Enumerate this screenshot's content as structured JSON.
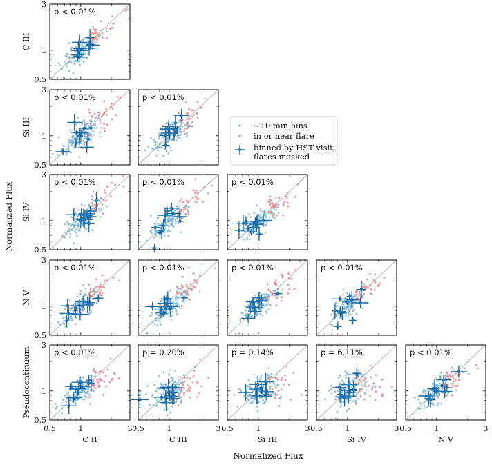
{
  "chart_data": {
    "type": "scatter",
    "layout": "corner-plot",
    "xlabel": "Normalized Flux",
    "ylabel": "Normalized Flux",
    "axis_scale": "log",
    "axis_range": [
      0.5,
      3
    ],
    "tick_labels": [
      "0.5",
      "1",
      "3"
    ],
    "reference_line": "y = x",
    "colors": {
      "bins": "#7fb4d9",
      "flare": "#f08080",
      "visit": "#1f6faa",
      "line": "#b0b0b0"
    },
    "legend": {
      "placement": "upper-right",
      "entries": [
        "~10 min bins",
        "in or near flare",
        "binned by HST visit,",
        "flares masked"
      ]
    },
    "row_labels": [
      "C III",
      "Si III",
      "Si IV",
      "N V",
      "Pseudocontinuum"
    ],
    "col_labels": [
      "C II",
      "C III",
      "Si III",
      "Si IV",
      "N V"
    ],
    "panels": [
      {
        "row": 0,
        "col": 0,
        "y": "C III",
        "x": "C II",
        "p_label": "p < 0.01%"
      },
      {
        "row": 1,
        "col": 0,
        "y": "Si III",
        "x": "C II",
        "p_label": "p < 0.01%"
      },
      {
        "row": 1,
        "col": 1,
        "y": "Si III",
        "x": "C III",
        "p_label": "p < 0.01%"
      },
      {
        "row": 2,
        "col": 0,
        "y": "Si IV",
        "x": "C II",
        "p_label": "p < 0.01%"
      },
      {
        "row": 2,
        "col": 1,
        "y": "Si IV",
        "x": "C III",
        "p_label": "p < 0.01%"
      },
      {
        "row": 2,
        "col": 2,
        "y": "Si IV",
        "x": "Si III",
        "p_label": "p < 0.01%"
      },
      {
        "row": 3,
        "col": 0,
        "y": "N V",
        "x": "C II",
        "p_label": "p < 0.01%"
      },
      {
        "row": 3,
        "col": 1,
        "y": "N V",
        "x": "C III",
        "p_label": "p < 0.01%"
      },
      {
        "row": 3,
        "col": 2,
        "y": "N V",
        "x": "Si III",
        "p_label": "p < 0.01%"
      },
      {
        "row": 3,
        "col": 3,
        "y": "N V",
        "x": "Si IV",
        "p_label": "p < 0.01%"
      },
      {
        "row": 4,
        "col": 0,
        "y": "Pseudocontinuum",
        "x": "C II",
        "p_label": "p < 0.01%"
      },
      {
        "row": 4,
        "col": 1,
        "y": "Pseudocontinuum",
        "x": "C III",
        "p_label": "p = 0.20%"
      },
      {
        "row": 4,
        "col": 2,
        "y": "Pseudocontinuum",
        "x": "Si III",
        "p_label": "p = 0.14%"
      },
      {
        "row": 4,
        "col": 3,
        "y": "Pseudocontinuum",
        "x": "Si IV",
        "p_label": "p = 6.11%"
      },
      {
        "row": 4,
        "col": 4,
        "y": "Pseudocontinuum",
        "x": "N V",
        "p_label": "p < 0.01%"
      }
    ]
  }
}
